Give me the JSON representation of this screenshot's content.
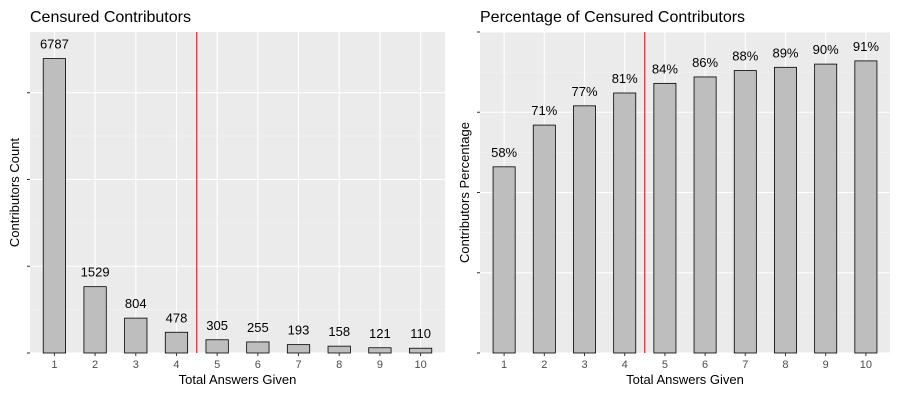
{
  "chart_data": [
    {
      "type": "bar",
      "title": "Censured Contributors",
      "xlabel": "Total Answers Given",
      "ylabel": "Contributors Count",
      "categories": [
        "1",
        "2",
        "3",
        "4",
        "5",
        "6",
        "7",
        "8",
        "9",
        "10"
      ],
      "values": [
        6787,
        1529,
        804,
        478,
        305,
        255,
        193,
        158,
        121,
        110
      ],
      "value_labels": [
        "6787",
        "1529",
        "804",
        "478",
        "305",
        "255",
        "193",
        "158",
        "121",
        "110"
      ],
      "ylim": [
        0,
        7400
      ],
      "y_ticks": [
        0,
        2000,
        4000,
        6000
      ],
      "y_tick_labels_visible": false,
      "grid": true,
      "reference_line": {
        "x": 4.5,
        "color": "#cc0000"
      },
      "bar_fill": "#bebebe",
      "bar_stroke": "#000000",
      "panel_background": "#ebebeb"
    },
    {
      "type": "bar",
      "title": "Percentage of Censured Contributors",
      "xlabel": "Total Answers Given",
      "ylabel": "Contributors Percentage",
      "categories": [
        "1",
        "2",
        "3",
        "4",
        "5",
        "6",
        "7",
        "8",
        "9",
        "10"
      ],
      "values": [
        58,
        71,
        77,
        81,
        84,
        86,
        88,
        89,
        90,
        91
      ],
      "value_labels": [
        "58%",
        "71%",
        "77%",
        "81%",
        "84%",
        "86%",
        "88%",
        "89%",
        "90%",
        "91%"
      ],
      "ylim": [
        0,
        100
      ],
      "y_ticks": [
        0,
        25,
        50,
        75,
        100
      ],
      "y_tick_labels_visible": false,
      "grid": true,
      "reference_line": {
        "x": 4.5,
        "color": "#cc0000"
      },
      "bar_fill": "#bebebe",
      "bar_stroke": "#000000",
      "panel_background": "#ebebeb"
    }
  ]
}
